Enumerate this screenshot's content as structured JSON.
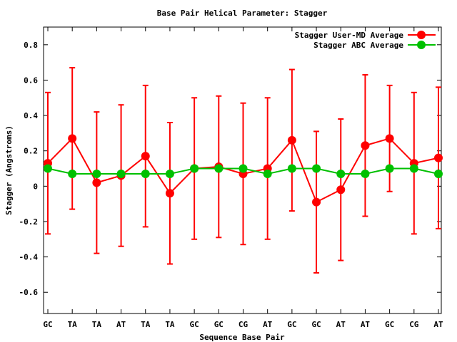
{
  "chart_data": {
    "type": "line",
    "title": "Base Pair Helical Parameter: Stagger",
    "xlabel": "Sequence Base Pair",
    "ylabel": "Stagger (Angstroms)",
    "categories": [
      "GC",
      "TA",
      "TA",
      "AT",
      "TA",
      "TA",
      "GC",
      "GC",
      "CG",
      "AT",
      "GC",
      "GC",
      "AT",
      "AT",
      "GC",
      "CG",
      "AT"
    ],
    "ylim": [
      -0.72,
      0.9
    ],
    "yticks": [
      -0.6,
      -0.4,
      -0.2,
      0,
      0.2,
      0.4,
      0.6,
      0.8
    ],
    "ytick_labels": [
      "-0.6",
      "-0.4",
      "-0.2",
      "0",
      "0.2",
      "0.4",
      "0.6",
      "0.8"
    ],
    "grid": false,
    "legend_position": "top-right",
    "series": [
      {
        "name": "Stagger User-MD Average",
        "color": "#ff0000",
        "values": [
          0.13,
          0.27,
          0.02,
          0.06,
          0.17,
          -0.04,
          0.1,
          0.11,
          0.07,
          0.1,
          0.26,
          -0.09,
          -0.02,
          0.23,
          0.27,
          0.13,
          0.16
        ],
        "error": [
          0.4,
          0.4,
          0.4,
          0.4,
          0.4,
          0.4,
          0.4,
          0.4,
          0.4,
          0.4,
          0.4,
          0.4,
          0.4,
          0.4,
          0.3,
          0.4,
          0.4
        ]
      },
      {
        "name": "Stagger ABC Average",
        "color": "#00c000",
        "values": [
          0.1,
          0.07,
          0.07,
          0.07,
          0.07,
          0.07,
          0.1,
          0.1,
          0.1,
          0.07,
          0.1,
          0.1,
          0.07,
          0.07,
          0.1,
          0.1,
          0.07
        ]
      }
    ]
  }
}
